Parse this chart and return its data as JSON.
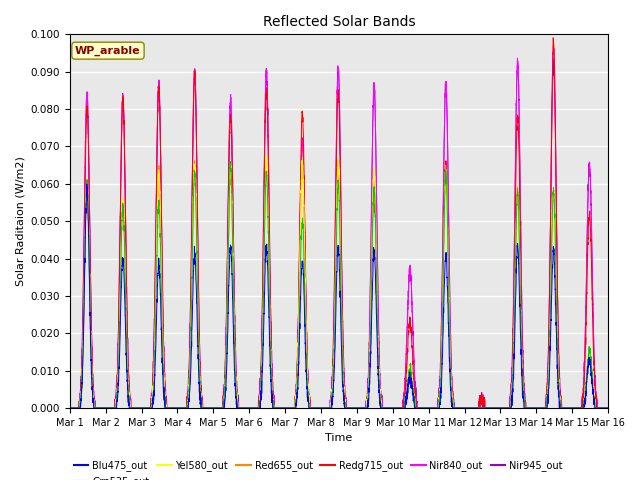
{
  "title": "Reflected Solar Bands",
  "ylabel": "Solar Raditaion (W/m2)",
  "xlabel": "Time",
  "annotation": "WP_arable",
  "ylim": [
    0.0,
    0.1
  ],
  "yticks": [
    0.0,
    0.01,
    0.02,
    0.03,
    0.04,
    0.05,
    0.06,
    0.07,
    0.08,
    0.09,
    0.1
  ],
  "x_labels": [
    "Mar 1",
    "Mar 2",
    "Mar 3",
    "Mar 4",
    "Mar 5",
    "Mar 6",
    "Mar 7",
    "Mar 8",
    "Mar 9",
    "Mar 10",
    "Mar 11",
    "Mar 12",
    "Mar 13",
    "Mar 14",
    "Mar 15",
    "Mar 16"
  ],
  "colors": {
    "Blu475_out": "#0000ff",
    "Grn535_out": "#00cc00",
    "Yel580_out": "#ffff00",
    "Red655_out": "#ff8800",
    "Redg715_out": "#ff0000",
    "Nir840_out": "#ff00ff",
    "Nir945_out": "#9900cc"
  },
  "bg_color": "#e8e8e8",
  "annotation_bg": "#ffffcc",
  "annotation_text_color": "#8b0000",
  "peaks_nir840": [
    0.084,
    0.083,
    0.087,
    0.09,
    0.082,
    0.09,
    0.071,
    0.091,
    0.086,
    0.037,
    0.087,
    0.002,
    0.092,
    0.097,
    0.065
  ],
  "peaks_nir945": [
    0.084,
    0.083,
    0.086,
    0.09,
    0.082,
    0.09,
    0.071,
    0.091,
    0.086,
    0.037,
    0.087,
    0.002,
    0.092,
    0.092,
    0.065
  ],
  "peaks_redg715": [
    0.08,
    0.083,
    0.086,
    0.09,
    0.078,
    0.085,
    0.079,
    0.085,
    0.059,
    0.023,
    0.065,
    0.002,
    0.078,
    0.098,
    0.052
  ],
  "peaks_red655": [
    0.06,
    0.055,
    0.063,
    0.065,
    0.063,
    0.065,
    0.065,
    0.065,
    0.06,
    0.01,
    0.063,
    0.001,
    0.058,
    0.058,
    0.015
  ],
  "peaks_yel580": [
    0.06,
    0.055,
    0.063,
    0.065,
    0.065,
    0.065,
    0.065,
    0.065,
    0.063,
    0.01,
    0.063,
    0.001,
    0.057,
    0.058,
    0.015
  ],
  "peaks_grn535": [
    0.06,
    0.054,
    0.055,
    0.063,
    0.065,
    0.063,
    0.05,
    0.06,
    0.059,
    0.01,
    0.063,
    0.001,
    0.058,
    0.058,
    0.015
  ],
  "peaks_blu475": [
    0.058,
    0.04,
    0.038,
    0.041,
    0.043,
    0.043,
    0.039,
    0.043,
    0.042,
    0.008,
    0.041,
    0.001,
    0.043,
    0.042,
    0.013
  ]
}
